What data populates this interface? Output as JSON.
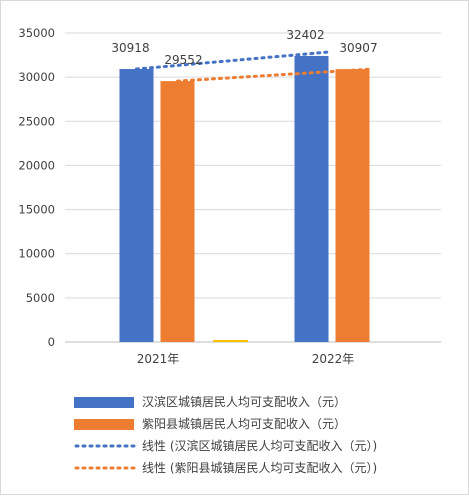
{
  "chart_data": {
    "type": "bar",
    "categories": [
      "2021年",
      "2022年"
    ],
    "series": [
      {
        "name": "汉滨区城镇居民人均可支配收入（元）",
        "values": [
          30918,
          32402
        ],
        "color": "#4472C4"
      },
      {
        "name": "紫阳县城镇居民人均可支配收入（元）",
        "values": [
          29552,
          30907
        ],
        "color": "#ED7D31"
      }
    ],
    "trendlines": [
      {
        "name": "线性 (汉滨区城镇居民人均可支配收入（元）)",
        "series": 0,
        "color": "#4472C4",
        "style": "dotted"
      },
      {
        "name": "线性 (紫阳县城镇居民人均可支配收入（元）)",
        "series": 1,
        "color": "#ED7D31",
        "style": "dotted"
      }
    ],
    "y_ticks": [
      "0",
      "5000",
      "10000",
      "15000",
      "20000",
      "25000",
      "30000",
      "35000"
    ],
    "ylim": [
      0,
      35000
    ],
    "grid": true,
    "legend_position": "bottom",
    "title": "",
    "xlabel": "",
    "ylabel": ""
  }
}
